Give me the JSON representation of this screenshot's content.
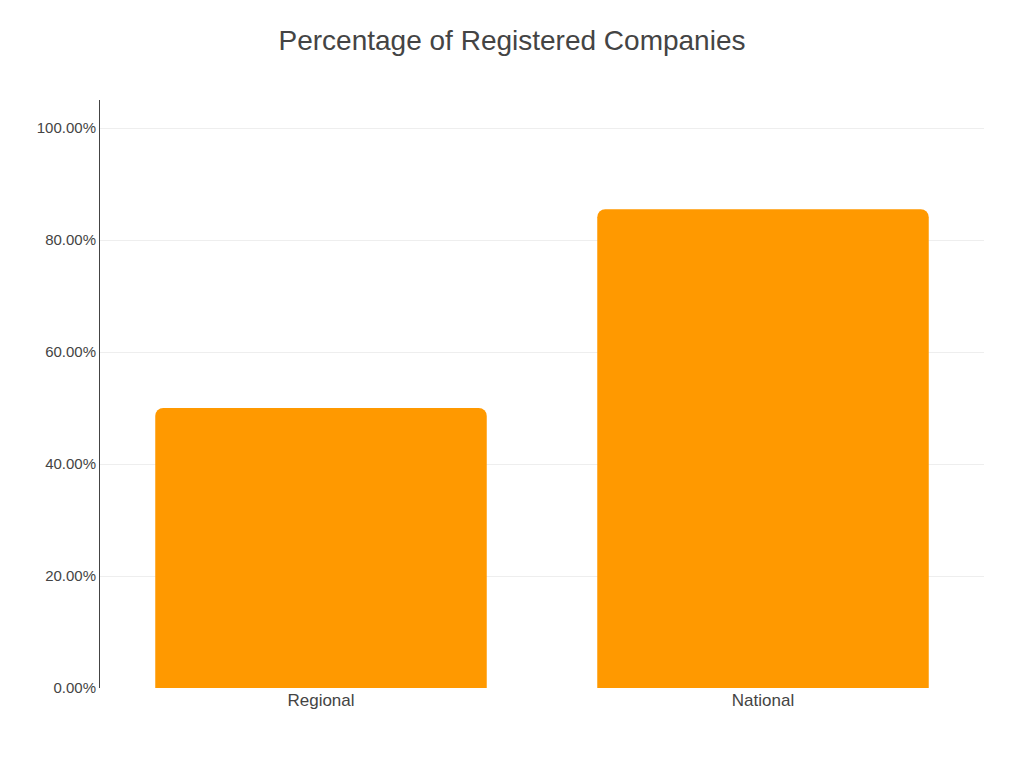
{
  "chart_data": {
    "type": "bar",
    "title": "Percentage of Registered Companies",
    "categories": [
      "Regional",
      "National"
    ],
    "values": [
      0.5,
      0.855
    ],
    "color": "#FF9900",
    "ylim": [
      0,
      1.05
    ],
    "yticks": [
      {
        "value": 0.0,
        "label": "0.00%"
      },
      {
        "value": 0.2,
        "label": "20.00%"
      },
      {
        "value": 0.4,
        "label": "40.00%"
      },
      {
        "value": 0.6,
        "label": "60.00%"
      },
      {
        "value": 0.8,
        "label": "80.00%"
      },
      {
        "value": 1.0,
        "label": "100.00%"
      }
    ],
    "grid": true
  }
}
